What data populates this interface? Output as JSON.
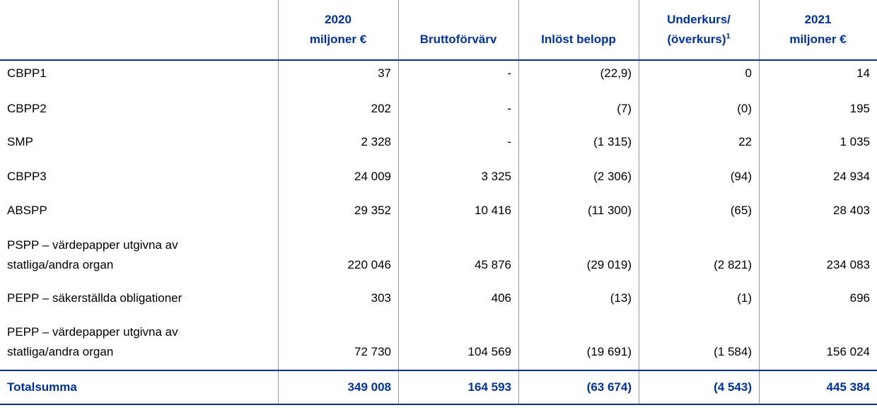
{
  "table": {
    "columns": [
      {
        "lines": [
          "2020",
          "miljoner €"
        ]
      },
      {
        "lines": [
          "Bruttoförvärv"
        ]
      },
      {
        "lines": [
          "Inlöst belopp"
        ]
      },
      {
        "lines": [
          "Underkurs/",
          "(överkurs)"
        ],
        "footnote": "1"
      },
      {
        "lines": [
          "2021",
          "miljoner €"
        ]
      }
    ],
    "rows": [
      {
        "label": [
          "CBPP1"
        ],
        "cells": [
          "37",
          "-",
          "(22,9)",
          "0",
          "14"
        ]
      },
      {
        "label": [
          "CBPP2"
        ],
        "cells": [
          "202",
          "-",
          "(7)",
          "(0)",
          "195"
        ]
      },
      {
        "label": [
          "SMP"
        ],
        "cells": [
          "2 328",
          "-",
          "(1 315)",
          "22",
          "1 035"
        ]
      },
      {
        "label": [
          "CBPP3"
        ],
        "cells": [
          "24 009",
          "3 325",
          "(2 306)",
          "(94)",
          "24 934"
        ]
      },
      {
        "label": [
          "ABSPP"
        ],
        "cells": [
          "29 352",
          "10 416",
          "(11 300)",
          "(65)",
          "28 403"
        ]
      },
      {
        "label": [
          "PSPP – värdepapper utgivna av",
          "statliga/andra organ"
        ],
        "cells": [
          "220 046",
          "45 876",
          "(29 019)",
          "(2 821)",
          "234 083"
        ]
      },
      {
        "label": [
          "PEPP – säkerställda obligationer"
        ],
        "cells": [
          "303",
          "406",
          "(13)",
          "(1)",
          "696"
        ]
      },
      {
        "label": [
          "PEPP – värdepapper utgivna av",
          "statliga/andra organ"
        ],
        "cells": [
          "72 730",
          "104 569",
          "(19 691)",
          "(1 584)",
          "156 024"
        ]
      }
    ],
    "total": {
      "label": "Totalsumma",
      "cells": [
        "349 008",
        "164 593",
        "(63 674)",
        "(4 543)",
        "445 384"
      ]
    }
  }
}
